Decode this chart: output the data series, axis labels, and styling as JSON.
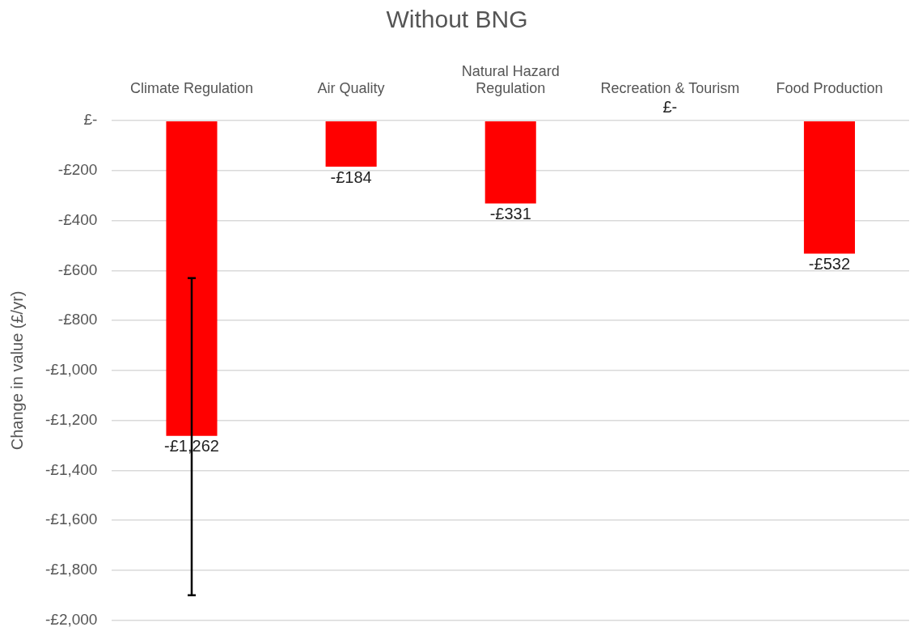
{
  "chart_data": {
    "type": "bar",
    "title": "Without BNG",
    "ylabel": "Change in value (£/yr)",
    "categories": [
      "Climate Regulation",
      "Air Quality",
      "Natural Hazard Regulation",
      "Recreation & Tourism",
      "Food Production"
    ],
    "values": [
      -1262,
      -184,
      -331,
      0,
      -532
    ],
    "color": "#ff0000",
    "errors": [
      [
        -1900,
        -630
      ],
      null,
      null,
      null,
      null
    ],
    "value_labels": [
      "-£1,262",
      "-£184",
      "-£331",
      "£-",
      "-£532"
    ],
    "ylim": [
      -2000,
      0
    ],
    "yticks": [
      {
        "value": 0,
        "label": "£-"
      },
      {
        "value": -200,
        "label": "-£200"
      },
      {
        "value": -400,
        "label": "-£400"
      },
      {
        "value": -600,
        "label": "-£600"
      },
      {
        "value": -800,
        "label": "-£800"
      },
      {
        "value": -1000,
        "label": "-£1,000"
      },
      {
        "value": -1200,
        "label": "-£1,200"
      },
      {
        "value": -1400,
        "label": "-£1,400"
      },
      {
        "value": -1600,
        "label": "-£1,600"
      },
      {
        "value": -1800,
        "label": "-£1,800"
      },
      {
        "value": -2000,
        "label": "-£2,000"
      }
    ],
    "grid": "y",
    "legend": false
  }
}
